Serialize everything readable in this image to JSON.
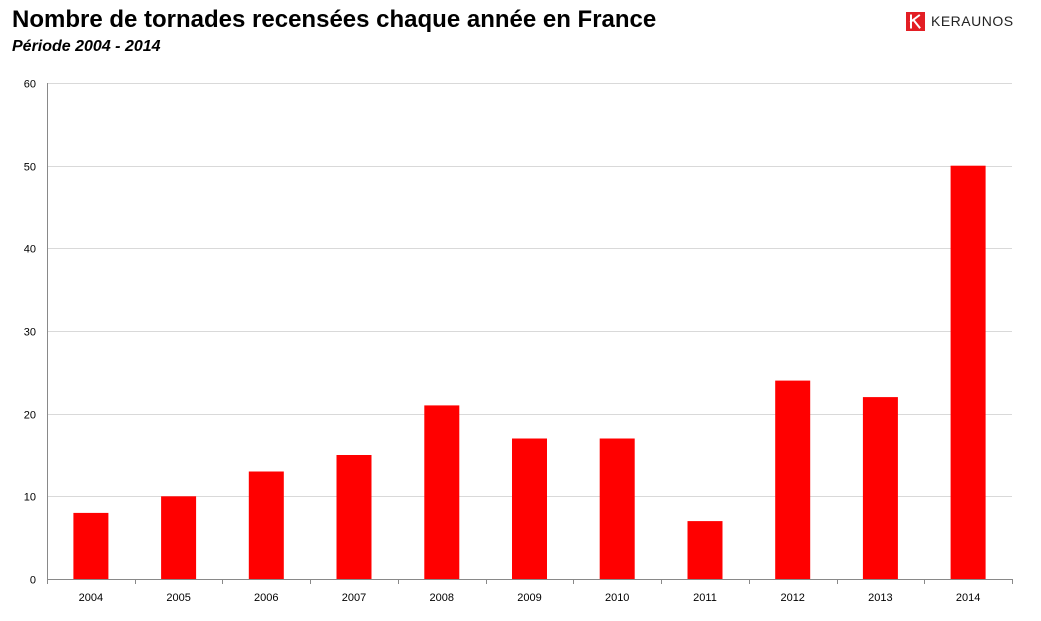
{
  "header": {
    "title": "Nombre de tornades recensées chaque année en France",
    "subtitle": "Période 2004 - 2014"
  },
  "brand": {
    "name": "KERAUNOS",
    "logo_icon": "keraunos-k-logo-icon",
    "logo_color": "#e31e24"
  },
  "colors": {
    "bar": "#ff0000",
    "grid": "#d9d9d9",
    "axis": "#898989"
  },
  "chart_data": {
    "type": "bar",
    "title": "Nombre de tornades recensées chaque année en France",
    "subtitle": "Période 2004 - 2014",
    "xlabel": "",
    "ylabel": "",
    "categories": [
      "2004",
      "2005",
      "2006",
      "2007",
      "2008",
      "2009",
      "2010",
      "2011",
      "2012",
      "2013",
      "2014"
    ],
    "values": [
      8,
      10,
      13,
      15,
      21,
      17,
      17,
      7,
      24,
      22,
      50
    ],
    "ylim": [
      0,
      60
    ],
    "yticks": [
      0,
      10,
      20,
      30,
      40,
      50,
      60
    ],
    "grid": true,
    "legend": "none"
  }
}
